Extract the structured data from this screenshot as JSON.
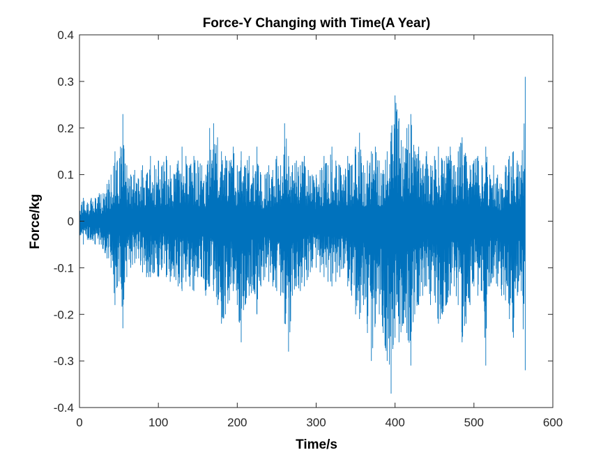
{
  "chart_data": {
    "type": "line",
    "title": "Force-Y Changing with Time(A Year)",
    "xlabel": "Time/s",
    "ylabel": "Force/kg",
    "xlim": [
      0,
      600
    ],
    "ylim": [
      -0.4,
      0.4
    ],
    "x_ticks": [
      0,
      100,
      200,
      300,
      400,
      500,
      600
    ],
    "x_tick_labels": [
      "0",
      "100",
      "200",
      "300",
      "400",
      "500",
      "600"
    ],
    "y_ticks": [
      -0.4,
      -0.3,
      -0.2,
      -0.1,
      0,
      0.1,
      0.2,
      0.3,
      0.4
    ],
    "y_tick_labels": [
      "-0.4",
      "-0.3",
      "-0.2",
      "-0.1",
      "0",
      "0.1",
      "0.2",
      "0.3",
      "0.4"
    ],
    "grid": false,
    "line_color": "#0072BD",
    "series": [
      {
        "x": [
          0,
          5,
          10,
          15,
          20,
          25,
          30,
          35,
          40,
          45,
          48,
          52,
          55,
          60,
          65,
          70,
          75,
          80,
          85,
          90,
          95,
          100,
          105,
          110,
          115,
          120,
          125,
          130,
          135,
          140,
          145,
          150,
          155,
          160,
          165,
          170,
          175,
          180,
          185,
          190,
          195,
          200,
          205,
          210,
          215,
          220,
          225,
          230,
          235,
          240,
          245,
          250,
          255,
          260,
          265,
          270,
          275,
          280,
          285,
          290,
          295,
          300,
          305,
          310,
          315,
          320,
          325,
          330,
          335,
          340,
          345,
          350,
          355,
          360,
          365,
          370,
          375,
          380,
          385,
          390,
          395,
          400,
          405,
          410,
          415,
          420,
          425,
          430,
          435,
          440,
          445,
          450,
          455,
          460,
          465,
          470,
          475,
          480,
          485,
          490,
          495,
          500,
          505,
          510,
          515,
          520,
          525,
          530,
          535,
          540,
          545,
          550,
          555,
          560,
          565
        ],
        "upper": [
          0.04,
          0.05,
          0.04,
          0.05,
          0.05,
          0.06,
          0.06,
          0.08,
          0.1,
          0.15,
          0.13,
          0.16,
          0.23,
          0.12,
          0.1,
          0.11,
          0.09,
          0.12,
          0.1,
          0.14,
          0.12,
          0.13,
          0.12,
          0.14,
          0.12,
          0.1,
          0.13,
          0.16,
          0.14,
          0.12,
          0.14,
          0.13,
          0.12,
          0.1,
          0.2,
          0.21,
          0.18,
          0.15,
          0.14,
          0.13,
          0.16,
          0.12,
          0.15,
          0.12,
          0.14,
          0.12,
          0.16,
          0.1,
          0.1,
          0.12,
          0.11,
          0.14,
          0.12,
          0.21,
          0.14,
          0.12,
          0.13,
          0.12,
          0.14,
          0.11,
          0.1,
          0.1,
          0.11,
          0.14,
          0.12,
          0.16,
          0.13,
          0.12,
          0.1,
          0.14,
          0.12,
          0.16,
          0.19,
          0.12,
          0.13,
          0.15,
          0.16,
          0.13,
          0.11,
          0.15,
          0.19,
          0.27,
          0.22,
          0.16,
          0.2,
          0.23,
          0.15,
          0.16,
          0.12,
          0.15,
          0.12,
          0.14,
          0.16,
          0.13,
          0.14,
          0.16,
          0.12,
          0.15,
          0.18,
          0.14,
          0.12,
          0.13,
          0.14,
          0.12,
          0.16,
          0.1,
          0.12,
          0.1,
          0.08,
          0.12,
          0.14,
          0.15,
          0.13,
          0.12,
          0.31
        ],
        "lower": [
          -0.04,
          -0.05,
          -0.04,
          -0.04,
          -0.05,
          -0.05,
          -0.06,
          -0.08,
          -0.1,
          -0.18,
          -0.14,
          -0.12,
          -0.23,
          -0.12,
          -0.1,
          -0.09,
          -0.08,
          -0.11,
          -0.12,
          -0.12,
          -0.11,
          -0.12,
          -0.1,
          -0.12,
          -0.13,
          -0.12,
          -0.14,
          -0.15,
          -0.13,
          -0.14,
          -0.15,
          -0.12,
          -0.12,
          -0.16,
          -0.14,
          -0.15,
          -0.18,
          -0.22,
          -0.2,
          -0.17,
          -0.15,
          -0.18,
          -0.26,
          -0.18,
          -0.16,
          -0.15,
          -0.2,
          -0.14,
          -0.12,
          -0.13,
          -0.14,
          -0.15,
          -0.16,
          -0.22,
          -0.28,
          -0.16,
          -0.14,
          -0.15,
          -0.14,
          -0.12,
          -0.1,
          -0.1,
          -0.11,
          -0.12,
          -0.13,
          -0.14,
          -0.13,
          -0.12,
          -0.1,
          -0.14,
          -0.16,
          -0.2,
          -0.21,
          -0.18,
          -0.24,
          -0.3,
          -0.22,
          -0.2,
          -0.24,
          -0.3,
          -0.37,
          -0.25,
          -0.26,
          -0.22,
          -0.24,
          -0.31,
          -0.2,
          -0.18,
          -0.16,
          -0.14,
          -0.18,
          -0.16,
          -0.22,
          -0.2,
          -0.18,
          -0.16,
          -0.14,
          -0.18,
          -0.26,
          -0.22,
          -0.18,
          -0.14,
          -0.16,
          -0.15,
          -0.31,
          -0.14,
          -0.12,
          -0.14,
          -0.16,
          -0.17,
          -0.21,
          -0.25,
          -0.16,
          -0.15,
          -0.32
        ]
      }
    ]
  }
}
